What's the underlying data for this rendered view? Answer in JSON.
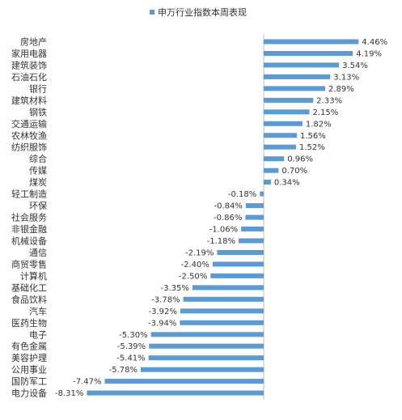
{
  "chart_data": {
    "type": "bar",
    "orientation": "horizontal",
    "legend": {
      "label": "申万行业指数本周表现",
      "position": "top"
    },
    "colors": {
      "bar": "#5b9bd5",
      "axis": "#bfbfbf"
    },
    "grid": false,
    "unit": "%",
    "xlim": [
      -8.31,
      4.46
    ],
    "categories": [
      "房地产",
      "家用电器",
      "建筑装饰",
      "石油石化",
      "银行",
      "建筑材料",
      "钢铁",
      "交通运输",
      "农林牧渔",
      "纺织服饰",
      "综合",
      "传媒",
      "煤炭",
      "轻工制造",
      "环保",
      "社会服务",
      "非银金融",
      "机械设备",
      "通信",
      "商贸零售",
      "计算机",
      "基础化工",
      "食品饮料",
      "汽车",
      "医药生物",
      "电子",
      "有色金属",
      "美容护理",
      "公用事业",
      "国防军工",
      "电力设备"
    ],
    "values": [
      4.46,
      4.19,
      3.54,
      3.13,
      2.89,
      2.33,
      2.15,
      1.82,
      1.56,
      1.52,
      0.96,
      0.7,
      0.34,
      -0.18,
      -0.84,
      -0.86,
      -1.06,
      -1.18,
      -2.19,
      -2.4,
      -2.5,
      -3.35,
      -3.78,
      -3.92,
      -3.94,
      -5.3,
      -5.39,
      -5.41,
      -5.78,
      -7.47,
      -8.31
    ],
    "value_labels": [
      "4.46%",
      "4.19%",
      "3.54%",
      "3.13%",
      "2.89%",
      "2.33%",
      "2.15%",
      "1.82%",
      "1.56%",
      "1.52%",
      "0.96%",
      "0.70%",
      "0.34%",
      "-0.18%",
      "-0.84%",
      "-0.86%",
      "-1.06%",
      "-1.18%",
      "-2.19%",
      "-2.40%",
      "-2.50%",
      "-3.35%",
      "-3.78%",
      "-3.92%",
      "-3.94%",
      "-5.30%",
      "-5.39%",
      "-5.41%",
      "-5.78%",
      "-7.47%",
      "-8.31%"
    ]
  }
}
